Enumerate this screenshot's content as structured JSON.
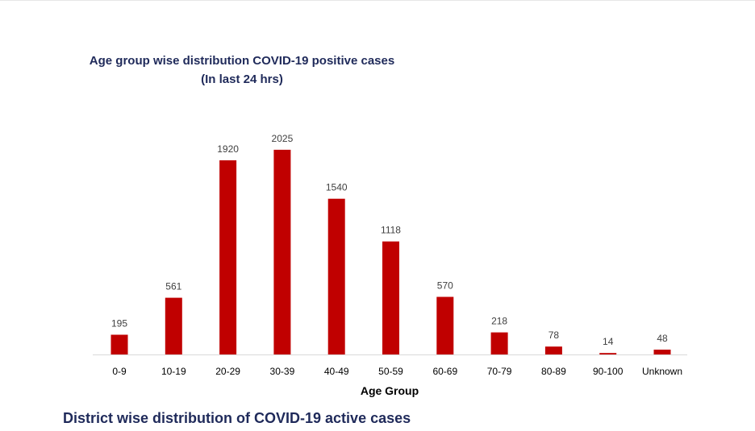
{
  "chart_data": {
    "type": "bar",
    "title": "Age group wise distribution COVID-19 positive cases",
    "subtitle": "(In last 24 hrs)",
    "xlabel": "Age Group",
    "ylabel": "",
    "categories": [
      "0-9",
      "10-19",
      "20-29",
      "30-39",
      "40-49",
      "50-59",
      "60-69",
      "70-79",
      "80-89",
      "90-100",
      "Unknown"
    ],
    "values": [
      195,
      561,
      1920,
      2025,
      1540,
      1118,
      570,
      218,
      78,
      14,
      48
    ],
    "ylim": [
      0,
      2200
    ],
    "grid": false,
    "legend": "none",
    "bar_color": "#c00000"
  },
  "section": {
    "heading": "District wise distribution of COVID-19 active cases"
  }
}
